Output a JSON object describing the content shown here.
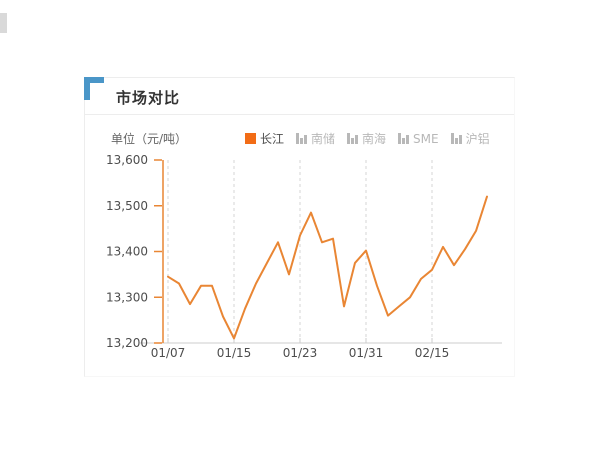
{
  "panel": {
    "title": "市场对比",
    "accent_color": "#4a96c8"
  },
  "chart_data": {
    "type": "line",
    "title": "市场对比",
    "unit_label": "单位（元/吨）",
    "series": [
      {
        "name": "长江",
        "color": "#e98634",
        "values": [
          13345,
          13330,
          13285,
          13325,
          13325,
          13258,
          13210,
          13275,
          13330,
          13375,
          13420,
          13350,
          13435,
          13485,
          13420,
          13428,
          13280,
          13375,
          13402,
          13325,
          13260,
          13280,
          13300,
          13340,
          13360,
          13410,
          13370,
          13405,
          13445,
          13520
        ]
      }
    ],
    "x_tick_labels": [
      "01/07",
      "01/15",
      "01/23",
      "01/31",
      "02/15"
    ],
    "x_tick_indices": [
      0,
      6,
      12,
      18,
      24
    ],
    "y_ticks": [
      13600,
      13500,
      13400,
      13300,
      13200
    ],
    "y_tick_labels": [
      "13,600",
      "13,500",
      "13,400",
      "13,300",
      "13,200"
    ],
    "ylim": [
      13200,
      13600
    ],
    "grid": "dashed-vertical",
    "legend_position": "top-right",
    "axis_colors": {
      "y_axis": "#e98634",
      "x_axis": "#cccccc",
      "gridline": "#d4d4d4"
    },
    "label_color": "#4d4d4d",
    "legend": [
      {
        "label": "长江",
        "active": true
      },
      {
        "label": "南储",
        "active": false
      },
      {
        "label": "南海",
        "active": false
      },
      {
        "label": "SME",
        "active": false
      },
      {
        "label": "沪铝",
        "active": false
      }
    ]
  }
}
